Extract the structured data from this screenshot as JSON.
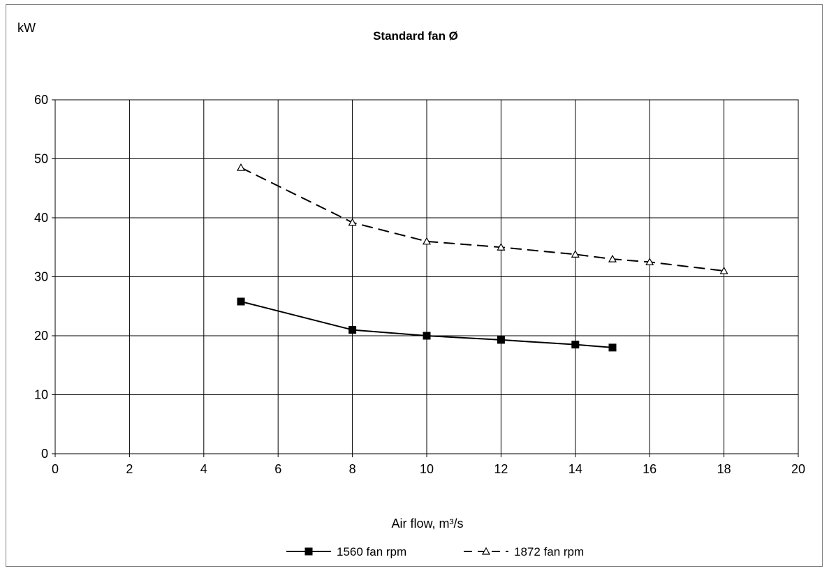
{
  "chart_data": {
    "type": "line",
    "title": "Standard fan Ø",
    "xlabel": "Air flow, m³/s",
    "ylabel": "kW",
    "xlim": [
      0,
      20
    ],
    "ylim": [
      0,
      60
    ],
    "x_ticks": [
      0,
      2,
      4,
      6,
      8,
      10,
      12,
      14,
      16,
      18,
      20
    ],
    "y_ticks": [
      0,
      10,
      20,
      30,
      40,
      50,
      60
    ],
    "grid": true,
    "legend_position": "bottom",
    "series": [
      {
        "name": "1560 fan rpm",
        "style": "solid",
        "marker": "filled-square",
        "color": "#000000",
        "x": [
          5,
          8,
          10,
          12,
          14,
          15
        ],
        "y": [
          25.8,
          21,
          20,
          19.3,
          18.5,
          18
        ]
      },
      {
        "name": "1872 fan rpm",
        "style": "dashed",
        "marker": "open-triangle",
        "color": "#000000",
        "x": [
          5,
          8,
          10,
          12,
          14,
          15,
          16,
          18
        ],
        "y": [
          48.5,
          39.2,
          36,
          35,
          33.8,
          33,
          32.5,
          31
        ]
      }
    ]
  }
}
